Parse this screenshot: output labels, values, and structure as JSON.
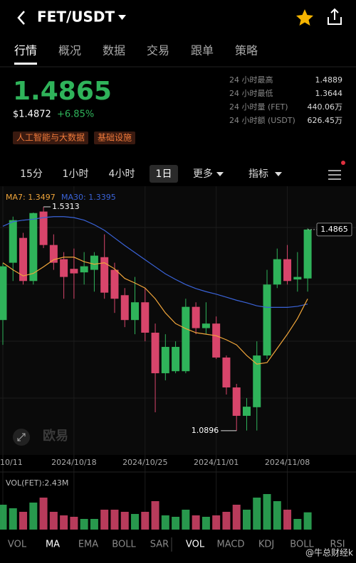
{
  "header": {
    "title": "FET/USDT"
  },
  "tabs": [
    "行情",
    "概况",
    "数据",
    "交易",
    "跟单",
    "策略"
  ],
  "price": {
    "last": "1.4865",
    "usd": "$1.4872",
    "change": "+6.85%"
  },
  "tags": [
    "人工智能与大数据",
    "基础设施"
  ],
  "stats": [
    {
      "label": "24 小时最高",
      "value": "1.4889"
    },
    {
      "label": "24 小时最低",
      "value": "1.3644"
    },
    {
      "label": "24 小时量 (FET)",
      "value": "440.06万"
    },
    {
      "label": "24 小时额 (USDT)",
      "value": "626.45万"
    }
  ],
  "intervals": [
    "15分",
    "1小时",
    "4小时",
    "1日"
  ],
  "more": "更多",
  "indicator": "指标",
  "chart": {
    "type": "candlestick",
    "ma7_label": "MA7: 1.3497",
    "ma30_label": "MA30: 1.3395",
    "up_color": "#2fb35a",
    "down_color": "#d8456b",
    "ma7_color": "#f0a53a",
    "ma30_color": "#3a63d8",
    "categories": [
      "10/11",
      null,
      null,
      null,
      null,
      null,
      null,
      "2024/10/18",
      null,
      null,
      null,
      null,
      null,
      null,
      "2024/10/25",
      null,
      null,
      null,
      null,
      null,
      null,
      "2024/11/01",
      null,
      null,
      null,
      null,
      null,
      null,
      "2024/11/08",
      null,
      null
    ],
    "open": [
      1.308,
      1.421,
      1.47,
      1.385,
      1.522,
      1.456,
      1.428,
      1.409,
      1.402,
      1.407,
      1.432,
      1.407,
      1.357,
      1.308,
      1.343,
      1.283,
      1.203,
      1.207,
      1.207,
      1.334,
      1.292,
      1.301,
      1.234,
      1.175,
      1.119,
      1.136,
      1.238,
      1.378,
      1.428,
      1.388,
      1.39
    ],
    "high": [
      1.42,
      1.512,
      1.48,
      1.52,
      1.5313,
      1.477,
      1.442,
      1.449,
      1.442,
      1.442,
      1.477,
      1.421,
      1.371,
      1.393,
      1.371,
      1.301,
      1.28,
      1.266,
      1.35,
      1.343,
      1.343,
      1.315,
      1.238,
      1.182,
      1.154,
      1.266,
      1.407,
      1.449,
      1.456,
      1.442,
      1.4889
    ],
    "low": [
      1.259,
      1.385,
      1.378,
      1.378,
      1.45,
      1.407,
      1.35,
      1.35,
      1.378,
      1.364,
      1.35,
      1.322,
      1.294,
      1.28,
      1.266,
      1.126,
      1.189,
      1.203,
      1.203,
      1.28,
      1.28,
      1.231,
      1.161,
      1.0896,
      1.09,
      1.09,
      1.231,
      1.371,
      1.378,
      1.364,
      1.364
    ],
    "close": [
      1.414,
      1.505,
      1.385,
      1.519,
      1.456,
      1.421,
      1.393,
      1.4,
      1.414,
      1.435,
      1.362,
      1.35,
      1.308,
      1.343,
      1.283,
      1.203,
      1.255,
      1.255,
      1.334,
      1.292,
      1.301,
      1.234,
      1.175,
      1.119,
      1.137,
      1.238,
      1.378,
      1.428,
      1.385,
      1.393,
      1.4865
    ],
    "ma7": [
      1.421,
      1.407,
      1.395,
      1.4,
      1.413,
      1.427,
      1.432,
      1.432,
      1.423,
      1.418,
      1.421,
      1.409,
      1.39,
      1.381,
      1.371,
      1.35,
      1.322,
      1.301,
      1.291,
      1.283,
      1.28,
      1.277,
      1.269,
      1.259,
      1.238,
      1.221,
      1.224,
      1.252,
      1.28,
      1.311,
      1.3497
    ],
    "ma30": [
      1.493,
      1.502,
      1.505,
      1.507,
      1.51,
      1.512,
      1.512,
      1.51,
      1.505,
      1.496,
      1.485,
      1.47,
      1.455,
      1.441,
      1.427,
      1.413,
      1.399,
      1.388,
      1.378,
      1.37,
      1.364,
      1.359,
      1.353,
      1.347,
      1.342,
      1.336,
      1.333,
      1.333,
      1.333,
      1.335,
      1.3395
    ],
    "ylim": [
      1.0418,
      1.5607
    ],
    "high_label": "1.5313",
    "low_label": "1.0896",
    "last_label": "1.4865",
    "watermark": "欧易",
    "vol_label": "VOL(FET):2.43M",
    "volume": [
      3.5,
      3.0,
      2.5,
      3.8,
      4.5,
      2.5,
      2.0,
      1.8,
      1.5,
      1.5,
      2.8,
      2.8,
      2.5,
      2.2,
      2.5,
      4.0,
      2.0,
      1.8,
      2.8,
      2.0,
      1.8,
      2.0,
      2.5,
      3.5,
      2.8,
      4.5,
      5.0,
      4.0,
      2.8,
      1.5,
      2.43
    ],
    "vlim": [
      0,
      5.5
    ]
  },
  "bottom_tabs": [
    "VOL",
    "MA",
    "EMA",
    "BOLL",
    "SAR",
    "VOL",
    "MACD",
    "KDJ",
    "BOLL",
    "RSI"
  ],
  "footer_watermark": "@牛总财经k"
}
